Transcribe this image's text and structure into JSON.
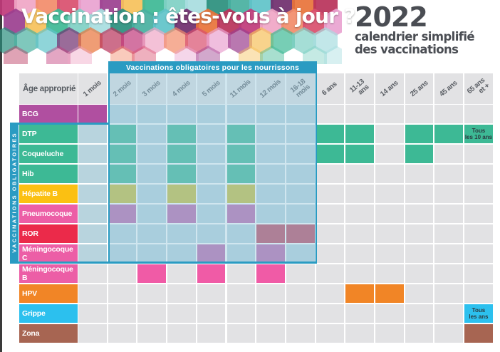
{
  "header": {
    "title": "Vaccination : êtes-vous à jour ?",
    "year": "2022",
    "subtitle_line1": "calendrier simplifié",
    "subtitle_line2": "des vaccinations"
  },
  "banner": {
    "obligatory_infants_label": "Vaccinations obligatoires pour les nourrissons",
    "side_band_label": "VACCINATIONS OBLIGATOIRES"
  },
  "table": {
    "age_header_label": "Âge approprié",
    "ages": [
      "1 mois",
      "2 mois",
      "3 mois",
      "4 mois",
      "5 mois",
      "11 mois",
      "12 mois",
      "16-18\nmois",
      "6 ans",
      "11-13\nans",
      "14 ans",
      "25 ans",
      "45 ans",
      "65 ans\net +"
    ],
    "colors": {
      "empty": "#e2e2e4",
      "oblig_overlay": "#b8d4de",
      "oblig_border": "#2a9bc2"
    },
    "rows": [
      {
        "name": "BCG",
        "label_color": "#b04fa0",
        "cell_color": "#b04fa0",
        "cells": [
          1,
          0,
          0,
          0,
          0,
          0,
          0,
          0,
          0,
          0,
          0,
          0,
          0,
          0
        ],
        "notes": {}
      },
      {
        "name": "DTP",
        "label_color": "#3db995",
        "cell_color": "#3db995",
        "cells": [
          0,
          1,
          0,
          1,
          0,
          1,
          0,
          0,
          1,
          1,
          0,
          1,
          1,
          1
        ],
        "notes": {
          "13": "Tous\nles 10 ans"
        }
      },
      {
        "name": "Coqueluche",
        "label_color": "#3db995",
        "cell_color": "#3db995",
        "cells": [
          0,
          1,
          0,
          1,
          0,
          1,
          0,
          0,
          1,
          1,
          0,
          1,
          0,
          0
        ],
        "notes": {}
      },
      {
        "name": "Hib",
        "label_color": "#3db995",
        "cell_color": "#3db995",
        "cells": [
          0,
          1,
          0,
          1,
          0,
          1,
          0,
          0,
          0,
          0,
          0,
          0,
          0,
          0
        ],
        "notes": {}
      },
      {
        "name": "Hépatite B",
        "label_color": "#fbc012",
        "cell_color": "#cbbd3a",
        "cells": [
          0,
          1,
          0,
          1,
          0,
          1,
          0,
          0,
          0,
          0,
          0,
          0,
          0,
          0
        ],
        "notes": {}
      },
      {
        "name": "Pneumocoque",
        "label_color": "#ec5ea6",
        "cell_color": "#bd66ad",
        "cells": [
          0,
          1,
          0,
          1,
          0,
          1,
          0,
          0,
          0,
          0,
          0,
          0,
          0,
          0
        ],
        "notes": {}
      },
      {
        "name": "ROR",
        "label_color": "#eb2a4a",
        "cell_color": "#bf4660",
        "cells": [
          0,
          0,
          0,
          0,
          0,
          0,
          1,
          1,
          0,
          0,
          0,
          0,
          0,
          0
        ],
        "notes": {}
      },
      {
        "name": "Méningocoque C",
        "label_color": "#ec5ea6",
        "cell_color": "#bd66ad",
        "cells": [
          0,
          0,
          0,
          0,
          1,
          0,
          1,
          0,
          0,
          0,
          0,
          0,
          0,
          0
        ],
        "notes": {}
      },
      {
        "name": "Méningocoque B",
        "label_color": "#ec5ea6",
        "cell_color": "#f05ba6",
        "cells": [
          0,
          0,
          1,
          0,
          1,
          0,
          1,
          0,
          0,
          0,
          0,
          0,
          0,
          0
        ],
        "notes": {}
      },
      {
        "name": "HPV",
        "label_color": "#f18526",
        "cell_color": "#f18526",
        "cells": [
          0,
          0,
          0,
          0,
          0,
          0,
          0,
          0,
          0,
          1,
          1,
          0,
          0,
          0
        ],
        "notes": {}
      },
      {
        "name": "Grippe",
        "label_color": "#2cc0ee",
        "cell_color": "#2cc0ee",
        "cells": [
          0,
          0,
          0,
          0,
          0,
          0,
          0,
          0,
          0,
          0,
          0,
          0,
          0,
          1
        ],
        "notes": {
          "13": "Tous\nles ans"
        }
      },
      {
        "name": "Zona",
        "label_color": "#a76552",
        "cell_color": "#a76552",
        "cells": [
          0,
          0,
          0,
          0,
          0,
          0,
          0,
          0,
          0,
          0,
          0,
          0,
          0,
          1
        ],
        "notes": {}
      }
    ]
  }
}
